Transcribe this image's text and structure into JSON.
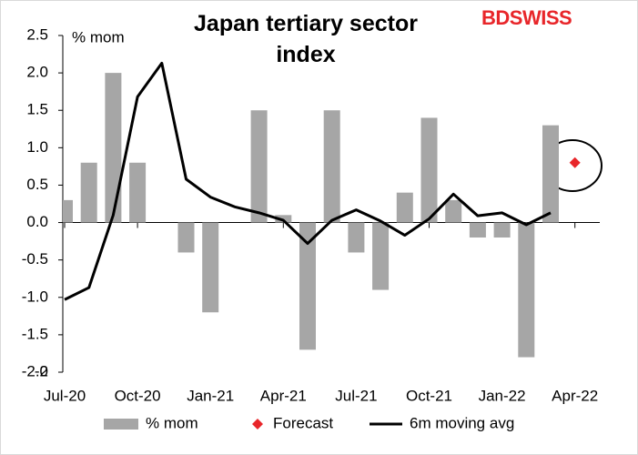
{
  "brand": "BDSWISS",
  "chart_data": {
    "type": "bar",
    "title": "Japan tertiary sector index",
    "y_label": "% mom",
    "categories": [
      "Jul-20",
      null,
      null,
      "Oct-20",
      null,
      null,
      "Jan-21",
      null,
      null,
      "Apr-21",
      null,
      null,
      "Jul-21",
      null,
      null,
      "Oct-21",
      null,
      null,
      "Jan-22",
      null,
      null,
      "Apr-22"
    ],
    "series": [
      {
        "name": "% mom",
        "type": "bar",
        "color": "#a6a6a6",
        "values": [
          0.3,
          0.8,
          2.0,
          0.8,
          0,
          -0.4,
          -1.2,
          0,
          1.5,
          0.1,
          -1.7,
          1.5,
          -0.4,
          -0.9,
          0.4,
          1.4,
          0.3,
          -0.2,
          -0.2,
          -1.8,
          1.3,
          null
        ]
      },
      {
        "name": "Forecast",
        "type": "scatter",
        "color": "#e8262a",
        "values": [
          null,
          null,
          null,
          null,
          null,
          null,
          null,
          null,
          null,
          null,
          null,
          null,
          null,
          null,
          null,
          null,
          null,
          null,
          null,
          null,
          null,
          0.8
        ]
      },
      {
        "name": "6m moving avg",
        "type": "line",
        "color": "#000000",
        "values": [
          -1.03,
          -0.87,
          0.1,
          1.68,
          2.13,
          0.58,
          0.34,
          0.21,
          0.13,
          0.03,
          -0.28,
          0.03,
          0.17,
          0.02,
          -0.17,
          0.05,
          0.38,
          0.09,
          0.13,
          -0.03,
          0.13,
          null
        ]
      }
    ],
    "ylim": [
      -2,
      2.5
    ],
    "yticks": [
      -2,
      {
        "value": -2,
        "label": "-2.0"
      },
      -1.5,
      {
        "value": -1,
        "label": "-1.0"
      },
      -0.5,
      {
        "value": 0,
        "label": "0.0"
      },
      0.5,
      {
        "value": 1,
        "label": "1.0"
      },
      1.5,
      {
        "value": 2,
        "label": "2.0"
      },
      2.5
    ],
    "grid": false,
    "legend": "bottom"
  }
}
